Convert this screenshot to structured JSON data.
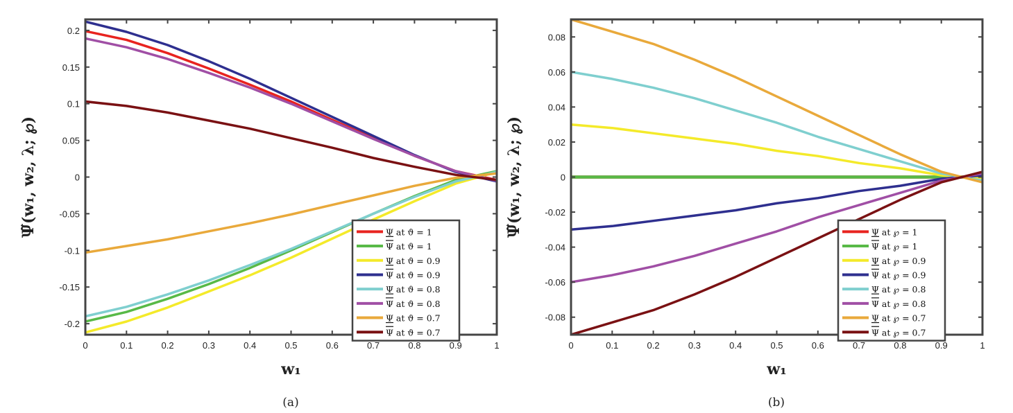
{
  "chart_data": [
    {
      "type": "line",
      "caption": "(a)",
      "xlabel": "w₁",
      "ylabel": "Ψ̃(w₁, w₂, λ; ℘)",
      "xlim": [
        0,
        1
      ],
      "ylim": [
        -0.215,
        0.215
      ],
      "xticks": [
        "0",
        "0.1",
        "0.2",
        "0.3",
        "0.4",
        "0.5",
        "0.6",
        "0.7",
        "0.8",
        "0.9",
        "1"
      ],
      "xtick_values": [
        0,
        0.1,
        0.2,
        0.3,
        0.4,
        0.5,
        0.6,
        0.7,
        0.8,
        0.9,
        1
      ],
      "yticks": [
        "-0.2",
        "-0.15",
        "-0.1",
        "-0.05",
        "0",
        "0.05",
        "0.1",
        "0.15",
        "0.2"
      ],
      "ytick_values": [
        -0.2,
        -0.15,
        -0.1,
        -0.05,
        0,
        0.05,
        0.1,
        0.15,
        0.2
      ],
      "grid": false,
      "legend_position": "bottom-right",
      "x": [
        0,
        0.1,
        0.2,
        0.3,
        0.4,
        0.5,
        0.6,
        0.7,
        0.8,
        0.9,
        1
      ],
      "series": [
        {
          "name": "Ψ at ϑ = 1",
          "bar": "under",
          "color": "#e8231f",
          "values": [
            0.199,
            0.187,
            0.169,
            0.148,
            0.126,
            0.103,
            0.078,
            0.053,
            0.029,
            0.008,
            -0.004
          ]
        },
        {
          "name": "Ψ at ϑ = 1",
          "bar": "over",
          "color": "#58b947",
          "values": [
            -0.197,
            -0.184,
            -0.166,
            -0.146,
            -0.124,
            -0.1,
            -0.075,
            -0.05,
            -0.026,
            -0.004,
            0.008
          ]
        },
        {
          "name": "Ψ at ϑ = 0.9",
          "bar": "under",
          "color": "#f4ea2a",
          "values": [
            -0.212,
            -0.197,
            -0.178,
            -0.156,
            -0.134,
            -0.11,
            -0.084,
            -0.058,
            -0.033,
            -0.009,
            0.007
          ]
        },
        {
          "name": "Ψ at ϑ = 0.9",
          "bar": "over",
          "color": "#2e2f8f",
          "values": [
            0.212,
            0.198,
            0.18,
            0.158,
            0.134,
            0.108,
            0.082,
            0.056,
            0.03,
            0.007,
            -0.006
          ]
        },
        {
          "name": "Ψ at ϑ = 0.8",
          "bar": "under",
          "color": "#7fcfcf",
          "values": [
            -0.19,
            -0.177,
            -0.16,
            -0.141,
            -0.12,
            -0.098,
            -0.074,
            -0.05,
            -0.027,
            -0.006,
            0.007
          ]
        },
        {
          "name": "Ψ at ϑ = 0.8",
          "bar": "over",
          "color": "#a04fa5",
          "values": [
            0.189,
            0.177,
            0.161,
            0.142,
            0.122,
            0.1,
            0.076,
            0.052,
            0.029,
            0.008,
            -0.005
          ]
        },
        {
          "name": "Ψ at ϑ = 0.7",
          "bar": "under",
          "color": "#e9a93b",
          "values": [
            -0.103,
            -0.094,
            -0.085,
            -0.074,
            -0.063,
            -0.051,
            -0.038,
            -0.025,
            -0.012,
            -0.001,
            0.005
          ]
        },
        {
          "name": "Ψ at ϑ = 0.7",
          "bar": "over",
          "color": "#7a1113",
          "values": [
            0.103,
            0.097,
            0.088,
            0.077,
            0.066,
            0.053,
            0.04,
            0.026,
            0.014,
            0.003,
            -0.004
          ]
        }
      ]
    },
    {
      "type": "line",
      "caption": "(b)",
      "xlabel": "w₁",
      "ylabel": "Ψ̃(w₁, w₂, λ; ℘)",
      "xlim": [
        0,
        1
      ],
      "ylim": [
        -0.09,
        0.09
      ],
      "xticks": [
        "0",
        "0.1",
        "0.2",
        "0.3",
        "0.4",
        "0.5",
        "0.6",
        "0.7",
        "0.8",
        "0.9",
        "1"
      ],
      "xtick_values": [
        0,
        0.1,
        0.2,
        0.3,
        0.4,
        0.5,
        0.6,
        0.7,
        0.8,
        0.9,
        1
      ],
      "yticks": [
        "-0.08",
        "-0.06",
        "-0.04",
        "-0.02",
        "0",
        "0.02",
        "0.04",
        "0.06",
        "0.08"
      ],
      "ytick_values": [
        -0.08,
        -0.06,
        -0.04,
        -0.02,
        0,
        0.02,
        0.04,
        0.06,
        0.08
      ],
      "grid": false,
      "legend_position": "bottom-right",
      "x": [
        0,
        0.1,
        0.2,
        0.3,
        0.4,
        0.5,
        0.6,
        0.7,
        0.8,
        0.9,
        1
      ],
      "series": [
        {
          "name": "Ψ at ℘ = 1",
          "bar": "under",
          "color": "#e8231f",
          "values": [
            0,
            0,
            0,
            0,
            0,
            0,
            0,
            0,
            0,
            0,
            0
          ]
        },
        {
          "name": "Ψ at ℘ = 1",
          "bar": "over",
          "color": "#58b947",
          "values": [
            0,
            0,
            0,
            0,
            0,
            0,
            0,
            0,
            0,
            0,
            0
          ]
        },
        {
          "name": "Ψ at ℘ = 0.9",
          "bar": "under",
          "color": "#f4ea2a",
          "values": [
            0.03,
            0.028,
            0.025,
            0.022,
            0.019,
            0.015,
            0.012,
            0.008,
            0.005,
            0.001,
            -0.001
          ]
        },
        {
          "name": "Ψ at ℘ = 0.9",
          "bar": "over",
          "color": "#2e2f8f",
          "values": [
            -0.03,
            -0.028,
            -0.025,
            -0.022,
            -0.019,
            -0.015,
            -0.012,
            -0.008,
            -0.005,
            -0.001,
            0.001
          ]
        },
        {
          "name": "Ψ at ℘ = 0.8",
          "bar": "under",
          "color": "#7fcfcf",
          "values": [
            0.06,
            0.056,
            0.051,
            0.045,
            0.038,
            0.031,
            0.023,
            0.016,
            0.009,
            0.002,
            -0.002
          ]
        },
        {
          "name": "Ψ at ℘ = 0.8",
          "bar": "over",
          "color": "#a04fa5",
          "values": [
            -0.06,
            -0.056,
            -0.051,
            -0.045,
            -0.038,
            -0.031,
            -0.023,
            -0.016,
            -0.009,
            -0.002,
            0.002
          ]
        },
        {
          "name": "Ψ at ℘ = 0.7",
          "bar": "under",
          "color": "#e9a93b",
          "values": [
            0.09,
            0.083,
            0.076,
            0.067,
            0.057,
            0.046,
            0.035,
            0.024,
            0.013,
            0.003,
            -0.003
          ]
        },
        {
          "name": "Ψ at ℘ = 0.7",
          "bar": "over",
          "color": "#7a1113",
          "values": [
            -0.09,
            -0.083,
            -0.076,
            -0.067,
            -0.057,
            -0.046,
            -0.035,
            -0.024,
            -0.013,
            -0.003,
            0.003
          ]
        }
      ]
    }
  ]
}
